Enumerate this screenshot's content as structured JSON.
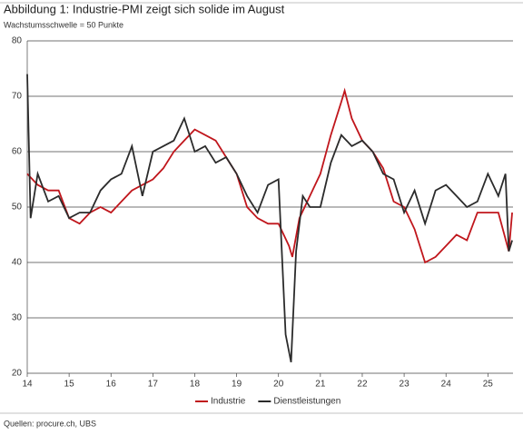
{
  "chart_data": {
    "type": "line",
    "title": "Abbildung 1: Industrie-PMI zeigt sich solide im August",
    "subtitle": "Wachstumsschwelle = 50 Punkte",
    "source": "Quellen: procure.ch, UBS",
    "xlim": [
      14,
      25.6
    ],
    "xticks": [
      14,
      15,
      16,
      17,
      18,
      19,
      20,
      21,
      22,
      23,
      24,
      25
    ],
    "ylim": [
      20,
      80
    ],
    "yticks": [
      20,
      30,
      40,
      50,
      60,
      70,
      80
    ],
    "grid": true,
    "series": [
      {
        "name": "Industrie",
        "color": "#c0161c",
        "x": [
          14.0,
          14.25,
          14.5,
          14.75,
          15.0,
          15.25,
          15.5,
          15.75,
          16.0,
          16.25,
          16.5,
          16.75,
          17.0,
          17.25,
          17.5,
          17.75,
          18.0,
          18.25,
          18.5,
          18.75,
          19.0,
          19.25,
          19.5,
          19.75,
          20.0,
          20.25,
          20.33,
          20.5,
          20.75,
          21.0,
          21.25,
          21.5,
          21.58,
          21.75,
          22.0,
          22.25,
          22.5,
          22.75,
          23.0,
          23.25,
          23.5,
          23.75,
          24.0,
          24.25,
          24.5,
          24.75,
          25.0,
          25.25,
          25.5,
          25.58
        ],
        "values": [
          56,
          54,
          53,
          53,
          48,
          47,
          49,
          50,
          49,
          51,
          53,
          54,
          55,
          57,
          60,
          62,
          64,
          63,
          62,
          59,
          56,
          50,
          48,
          47,
          47,
          43,
          41,
          48,
          52,
          56,
          63,
          69,
          71,
          66,
          62,
          60,
          57,
          51,
          50,
          46,
          40,
          41,
          43,
          45,
          44,
          49,
          49,
          49,
          42,
          49
        ]
      },
      {
        "name": "Dienstleistungen",
        "color": "#2b2b2b",
        "x": [
          14.0,
          14.08,
          14.25,
          14.5,
          14.75,
          15.0,
          15.25,
          15.5,
          15.75,
          16.0,
          16.25,
          16.5,
          16.75,
          17.0,
          17.25,
          17.5,
          17.75,
          18.0,
          18.25,
          18.5,
          18.75,
          19.0,
          19.25,
          19.5,
          19.75,
          20.0,
          20.17,
          20.3,
          20.42,
          20.58,
          20.75,
          21.0,
          21.25,
          21.5,
          21.75,
          22.0,
          22.25,
          22.5,
          22.75,
          23.0,
          23.25,
          23.5,
          23.75,
          24.0,
          24.25,
          24.5,
          24.75,
          25.0,
          25.25,
          25.42,
          25.5,
          25.58
        ],
        "values": [
          74,
          48,
          56,
          51,
          52,
          48,
          49,
          49,
          53,
          55,
          56,
          61,
          52,
          60,
          61,
          62,
          66,
          60,
          61,
          58,
          59,
          56,
          52,
          49,
          54,
          55,
          27,
          22,
          42,
          52,
          50,
          50,
          58,
          63,
          61,
          62,
          60,
          56,
          55,
          49,
          53,
          47,
          53,
          54,
          52,
          50,
          51,
          56,
          52,
          56,
          42,
          44
        ]
      }
    ]
  }
}
